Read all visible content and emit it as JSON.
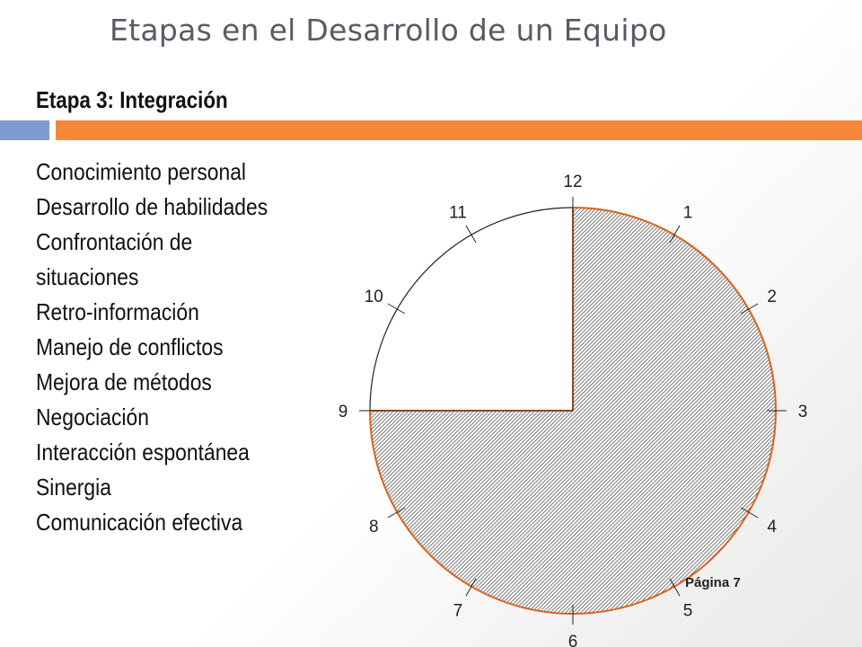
{
  "slide": {
    "title": "Etapas en el Desarrollo de un Equipo",
    "subtitle": "Etapa 3: Integración",
    "items": [
      "Conocimiento personal",
      "Desarrollo de habilidades",
      "Confrontación de",
      "situaciones",
      "Retro-información",
      "Manejo de conflictos",
      "Mejora de métodos",
      "Negociación",
      "Interacción espontánea",
      "Sinergia",
      "Comunicación efectiva"
    ],
    "page_label": "Página 7"
  },
  "clock": {
    "hour_labels": [
      "12",
      "1",
      "2",
      "3",
      "4",
      "5",
      "6",
      "7",
      "8",
      "9",
      "10",
      "11"
    ],
    "filled_from_hour": 0,
    "filled_to_hour": 9,
    "fill_pattern": "diagonal-hatch",
    "outline_color": "#d9621a"
  }
}
